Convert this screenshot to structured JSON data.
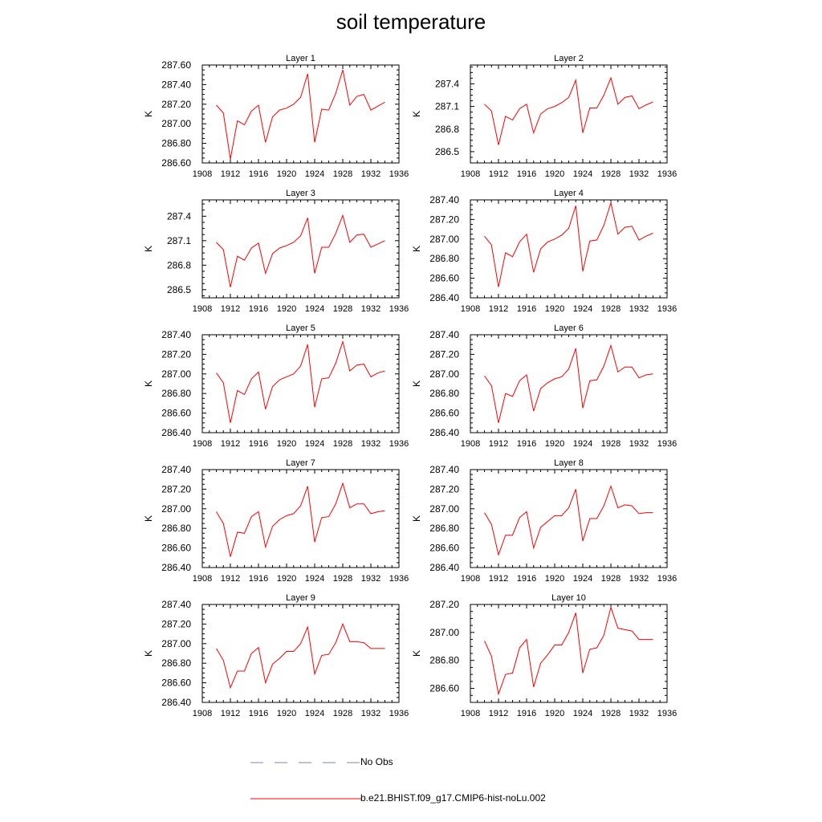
{
  "page": {
    "title": "soil temperature"
  },
  "legend": [
    {
      "label": "No Obs",
      "color": "#8080c0",
      "style": "dashed"
    },
    {
      "label": "b.e21.BHIST.f09_g17.CMIP6-hist-noLu.002",
      "color": "#ff0000",
      "style": "solid"
    }
  ],
  "chart_data": [
    {
      "type": "line",
      "title": "Layer 1",
      "xlabel": "",
      "ylabel": "K",
      "xlim": [
        1908,
        1936
      ],
      "ylim": [
        286.6,
        287.6
      ],
      "x_ticks": [
        1908,
        1912,
        1916,
        1920,
        1924,
        1928,
        1932,
        1936
      ],
      "y_ticks": [
        "286.60",
        "286.80",
        "287.00",
        "287.20",
        "287.40",
        "287.60"
      ],
      "y_tick_values": [
        286.6,
        286.8,
        287.0,
        287.2,
        287.4,
        287.6
      ],
      "series": [
        {
          "color": "#ff0000",
          "x": [
            1910,
            1911,
            1912,
            1913,
            1914,
            1915,
            1916,
            1917,
            1918,
            1919,
            1920,
            1921,
            1922,
            1923,
            1924,
            1925,
            1926,
            1927,
            1928,
            1929,
            1930,
            1931,
            1932,
            1933,
            1934
          ],
          "values": [
            287.19,
            287.11,
            286.64,
            287.03,
            286.99,
            287.13,
            287.19,
            286.81,
            287.07,
            287.14,
            287.16,
            287.2,
            287.27,
            287.51,
            286.81,
            287.15,
            287.14,
            287.31,
            287.55,
            287.19,
            287.28,
            287.3,
            287.14,
            287.18,
            287.22
          ]
        }
      ]
    },
    {
      "type": "line",
      "title": "Layer 2",
      "xlabel": "",
      "ylabel": "K",
      "xlim": [
        1908,
        1936
      ],
      "ylim": [
        286.35,
        287.65
      ],
      "x_ticks": [
        1908,
        1912,
        1916,
        1920,
        1924,
        1928,
        1932,
        1936
      ],
      "y_ticks": [
        "286.5",
        "286.8",
        "287.1",
        "287.4"
      ],
      "y_tick_values": [
        286.5,
        286.8,
        287.1,
        287.4
      ],
      "series": [
        {
          "color": "#ff0000",
          "x": [
            1910,
            1911,
            1912,
            1913,
            1914,
            1915,
            1916,
            1917,
            1918,
            1919,
            1920,
            1921,
            1922,
            1923,
            1924,
            1925,
            1926,
            1927,
            1928,
            1929,
            1930,
            1931,
            1932,
            1933,
            1934
          ],
          "values": [
            287.13,
            287.04,
            286.59,
            286.97,
            286.92,
            287.07,
            287.13,
            286.75,
            287.0,
            287.07,
            287.1,
            287.15,
            287.22,
            287.45,
            286.75,
            287.08,
            287.08,
            287.25,
            287.48,
            287.13,
            287.22,
            287.24,
            287.07,
            287.12,
            287.16
          ]
        }
      ]
    },
    {
      "type": "line",
      "title": "Layer 3",
      "xlabel": "",
      "ylabel": "K",
      "xlim": [
        1908,
        1936
      ],
      "ylim": [
        286.4,
        287.6
      ],
      "x_ticks": [
        1908,
        1912,
        1916,
        1920,
        1924,
        1928,
        1932,
        1936
      ],
      "y_ticks": [
        "286.5",
        "286.8",
        "287.1",
        "287.4"
      ],
      "y_tick_values": [
        286.5,
        286.8,
        287.1,
        287.4
      ],
      "series": [
        {
          "color": "#ff0000",
          "x": [
            1910,
            1911,
            1912,
            1913,
            1914,
            1915,
            1916,
            1917,
            1918,
            1919,
            1920,
            1921,
            1922,
            1923,
            1924,
            1925,
            1926,
            1927,
            1928,
            1929,
            1930,
            1931,
            1932,
            1933,
            1934
          ],
          "values": [
            287.08,
            286.99,
            286.53,
            286.91,
            286.86,
            287.01,
            287.07,
            286.7,
            286.94,
            287.01,
            287.04,
            287.08,
            287.16,
            287.38,
            286.7,
            287.02,
            287.02,
            287.19,
            287.41,
            287.08,
            287.17,
            287.18,
            287.02,
            287.06,
            287.1
          ]
        }
      ]
    },
    {
      "type": "line",
      "title": "Layer 4",
      "xlabel": "",
      "ylabel": "K",
      "xlim": [
        1908,
        1936
      ],
      "ylim": [
        286.4,
        287.4
      ],
      "x_ticks": [
        1908,
        1912,
        1916,
        1920,
        1924,
        1928,
        1932,
        1936
      ],
      "y_ticks": [
        "286.40",
        "286.60",
        "286.80",
        "287.00",
        "287.20",
        "287.40"
      ],
      "y_tick_values": [
        286.4,
        286.6,
        286.8,
        287.0,
        287.2,
        287.4
      ],
      "series": [
        {
          "color": "#ff0000",
          "x": [
            1910,
            1911,
            1912,
            1913,
            1914,
            1915,
            1916,
            1917,
            1918,
            1919,
            1920,
            1921,
            1922,
            1923,
            1924,
            1925,
            1926,
            1927,
            1928,
            1929,
            1930,
            1931,
            1932,
            1933,
            1934
          ],
          "values": [
            287.03,
            286.94,
            286.51,
            286.86,
            286.82,
            286.97,
            287.05,
            286.66,
            286.9,
            286.97,
            287.0,
            287.04,
            287.11,
            287.34,
            286.67,
            286.98,
            286.99,
            287.14,
            287.37,
            287.05,
            287.12,
            287.13,
            286.99,
            287.03,
            287.06
          ]
        }
      ]
    },
    {
      "type": "line",
      "title": "Layer 5",
      "xlabel": "",
      "ylabel": "K",
      "xlim": [
        1908,
        1936
      ],
      "ylim": [
        286.4,
        287.4
      ],
      "x_ticks": [
        1908,
        1912,
        1916,
        1920,
        1924,
        1928,
        1932,
        1936
      ],
      "y_ticks": [
        "286.40",
        "286.60",
        "286.80",
        "287.00",
        "287.20",
        "287.40"
      ],
      "y_tick_values": [
        286.4,
        286.6,
        286.8,
        287.0,
        287.2,
        287.4
      ],
      "series": [
        {
          "color": "#ff0000",
          "x": [
            1910,
            1911,
            1912,
            1913,
            1914,
            1915,
            1916,
            1917,
            1918,
            1919,
            1920,
            1921,
            1922,
            1923,
            1924,
            1925,
            1926,
            1927,
            1928,
            1929,
            1930,
            1931,
            1932,
            1933,
            1934
          ],
          "values": [
            287.01,
            286.91,
            286.5,
            286.83,
            286.79,
            286.95,
            287.02,
            286.64,
            286.87,
            286.94,
            286.97,
            287.0,
            287.08,
            287.3,
            286.66,
            286.95,
            286.96,
            287.11,
            287.33,
            287.03,
            287.09,
            287.1,
            286.97,
            287.01,
            287.03
          ]
        }
      ]
    },
    {
      "type": "line",
      "title": "Layer 6",
      "xlabel": "",
      "ylabel": "K",
      "xlim": [
        1908,
        1936
      ],
      "ylim": [
        286.4,
        287.4
      ],
      "x_ticks": [
        1908,
        1912,
        1916,
        1920,
        1924,
        1928,
        1932,
        1936
      ],
      "y_ticks": [
        "286.40",
        "286.60",
        "286.80",
        "287.00",
        "287.20",
        "287.40"
      ],
      "y_tick_values": [
        286.4,
        286.6,
        286.8,
        287.0,
        287.2,
        287.4
      ],
      "series": [
        {
          "color": "#ff0000",
          "x": [
            1910,
            1911,
            1912,
            1913,
            1914,
            1915,
            1916,
            1917,
            1918,
            1919,
            1920,
            1921,
            1922,
            1923,
            1924,
            1925,
            1926,
            1927,
            1928,
            1929,
            1930,
            1931,
            1932,
            1933,
            1934
          ],
          "values": [
            286.98,
            286.88,
            286.5,
            286.8,
            286.77,
            286.93,
            286.99,
            286.62,
            286.85,
            286.91,
            286.95,
            286.97,
            287.05,
            287.26,
            286.65,
            286.93,
            286.94,
            287.08,
            287.29,
            287.02,
            287.07,
            287.07,
            286.96,
            286.99,
            287.0
          ]
        }
      ]
    },
    {
      "type": "line",
      "title": "Layer 7",
      "xlabel": "",
      "ylabel": "K",
      "xlim": [
        1908,
        1936
      ],
      "ylim": [
        286.4,
        287.4
      ],
      "x_ticks": [
        1908,
        1912,
        1916,
        1920,
        1924,
        1928,
        1932,
        1936
      ],
      "y_ticks": [
        "286.40",
        "286.60",
        "286.80",
        "287.00",
        "287.20",
        "287.40"
      ],
      "y_tick_values": [
        286.4,
        286.6,
        286.8,
        287.0,
        287.2,
        287.4
      ],
      "series": [
        {
          "color": "#ff0000",
          "x": [
            1910,
            1911,
            1912,
            1913,
            1914,
            1915,
            1916,
            1917,
            1918,
            1919,
            1920,
            1921,
            1922,
            1923,
            1924,
            1925,
            1926,
            1927,
            1928,
            1929,
            1930,
            1931,
            1932,
            1933,
            1934
          ],
          "values": [
            286.97,
            286.85,
            286.51,
            286.76,
            286.75,
            286.92,
            286.97,
            286.61,
            286.82,
            286.89,
            286.93,
            286.95,
            287.03,
            287.23,
            286.66,
            286.91,
            286.92,
            287.05,
            287.26,
            287.01,
            287.05,
            287.05,
            286.95,
            286.97,
            286.98
          ]
        }
      ]
    },
    {
      "type": "line",
      "title": "Layer 8",
      "xlabel": "",
      "ylabel": "K",
      "xlim": [
        1908,
        1936
      ],
      "ylim": [
        286.4,
        287.4
      ],
      "x_ticks": [
        1908,
        1912,
        1916,
        1920,
        1924,
        1928,
        1932,
        1936
      ],
      "y_ticks": [
        "286.40",
        "286.60",
        "286.80",
        "287.00",
        "287.20",
        "287.40"
      ],
      "y_tick_values": [
        286.4,
        286.6,
        286.8,
        287.0,
        287.2,
        287.4
      ],
      "series": [
        {
          "color": "#ff0000",
          "x": [
            1910,
            1911,
            1912,
            1913,
            1914,
            1915,
            1916,
            1917,
            1918,
            1919,
            1920,
            1921,
            1922,
            1923,
            1924,
            1925,
            1926,
            1927,
            1928,
            1929,
            1930,
            1931,
            1932,
            1933,
            1934
          ],
          "values": [
            286.96,
            286.84,
            286.53,
            286.73,
            286.73,
            286.91,
            286.97,
            286.6,
            286.81,
            286.87,
            286.93,
            286.93,
            287.01,
            287.2,
            286.67,
            286.9,
            286.9,
            287.03,
            287.23,
            287.01,
            287.04,
            287.03,
            286.95,
            286.96,
            286.96
          ]
        }
      ]
    },
    {
      "type": "line",
      "title": "Layer 9",
      "xlabel": "",
      "ylabel": "K",
      "xlim": [
        1908,
        1936
      ],
      "ylim": [
        286.4,
        287.4
      ],
      "x_ticks": [
        1908,
        1912,
        1916,
        1920,
        1924,
        1928,
        1932,
        1936
      ],
      "y_ticks": [
        "286.40",
        "286.60",
        "286.80",
        "287.00",
        "287.20",
        "287.40"
      ],
      "y_tick_values": [
        286.4,
        286.6,
        286.8,
        287.0,
        287.2,
        287.4
      ],
      "series": [
        {
          "color": "#ff0000",
          "x": [
            1910,
            1911,
            1912,
            1913,
            1914,
            1915,
            1916,
            1917,
            1918,
            1919,
            1920,
            1921,
            1922,
            1923,
            1924,
            1925,
            1926,
            1927,
            1928,
            1929,
            1930,
            1931,
            1932,
            1933,
            1934
          ],
          "values": [
            286.95,
            286.83,
            286.55,
            286.72,
            286.72,
            286.9,
            286.96,
            286.6,
            286.79,
            286.85,
            286.92,
            286.92,
            287.0,
            287.17,
            286.69,
            286.88,
            286.89,
            287.01,
            287.2,
            287.02,
            287.02,
            287.01,
            286.95,
            286.95,
            286.95
          ]
        }
      ]
    },
    {
      "type": "line",
      "title": "Layer 10",
      "xlabel": "",
      "ylabel": "K",
      "xlim": [
        1908,
        1936
      ],
      "ylim": [
        286.5,
        287.2
      ],
      "x_ticks": [
        1908,
        1912,
        1916,
        1920,
        1924,
        1928,
        1932,
        1936
      ],
      "y_ticks": [
        "286.60",
        "286.80",
        "287.00",
        "287.20"
      ],
      "y_tick_values": [
        286.6,
        286.8,
        287.0,
        287.2
      ],
      "series": [
        {
          "color": "#ff0000",
          "x": [
            1910,
            1911,
            1912,
            1913,
            1914,
            1915,
            1916,
            1917,
            1918,
            1919,
            1920,
            1921,
            1922,
            1923,
            1924,
            1925,
            1926,
            1927,
            1928,
            1929,
            1930,
            1931,
            1932,
            1933,
            1934
          ],
          "values": [
            286.94,
            286.83,
            286.56,
            286.7,
            286.71,
            286.89,
            286.95,
            286.61,
            286.78,
            286.84,
            286.91,
            286.91,
            287.0,
            287.14,
            286.71,
            286.88,
            286.89,
            286.98,
            287.18,
            287.03,
            287.02,
            287.01,
            286.95,
            286.95,
            286.95
          ]
        }
      ]
    }
  ]
}
